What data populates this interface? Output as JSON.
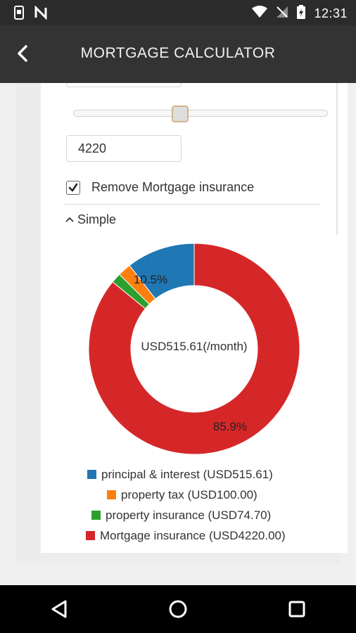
{
  "header": {
    "title": "MORTGAGE CALCULATOR",
    "back_icon": "arrow-left-icon"
  },
  "status_bar": {
    "time": "12:31"
  },
  "form": {
    "top_input_value": "",
    "mortgage_insurance_input_value": "4220",
    "remove_insurance_label": "Remove Mortgage insurance",
    "remove_insurance_checked": true,
    "section_toggle_label": "Simple"
  },
  "chart_data": {
    "type": "pie",
    "center_label": "USD515.61(/month)",
    "slice_labels": [
      "10.5%",
      "85.9%"
    ],
    "slices": [
      {
        "name": "principal & interest",
        "value": 515.61,
        "color": "#1f77b4"
      },
      {
        "name": "property tax",
        "value": 100.0,
        "color": "#ff7f0e"
      },
      {
        "name": "property insurance",
        "value": 74.7,
        "color": "#2ca02c"
      },
      {
        "name": "Mortgage insurance",
        "value": 4220.0,
        "color": "#d62728"
      }
    ],
    "legend": [
      "principal & interest (USD515.61)",
      "property tax (USD100.00)",
      "property insurance (USD74.70)",
      "Mortgage insurance (USD4220.00)"
    ]
  }
}
